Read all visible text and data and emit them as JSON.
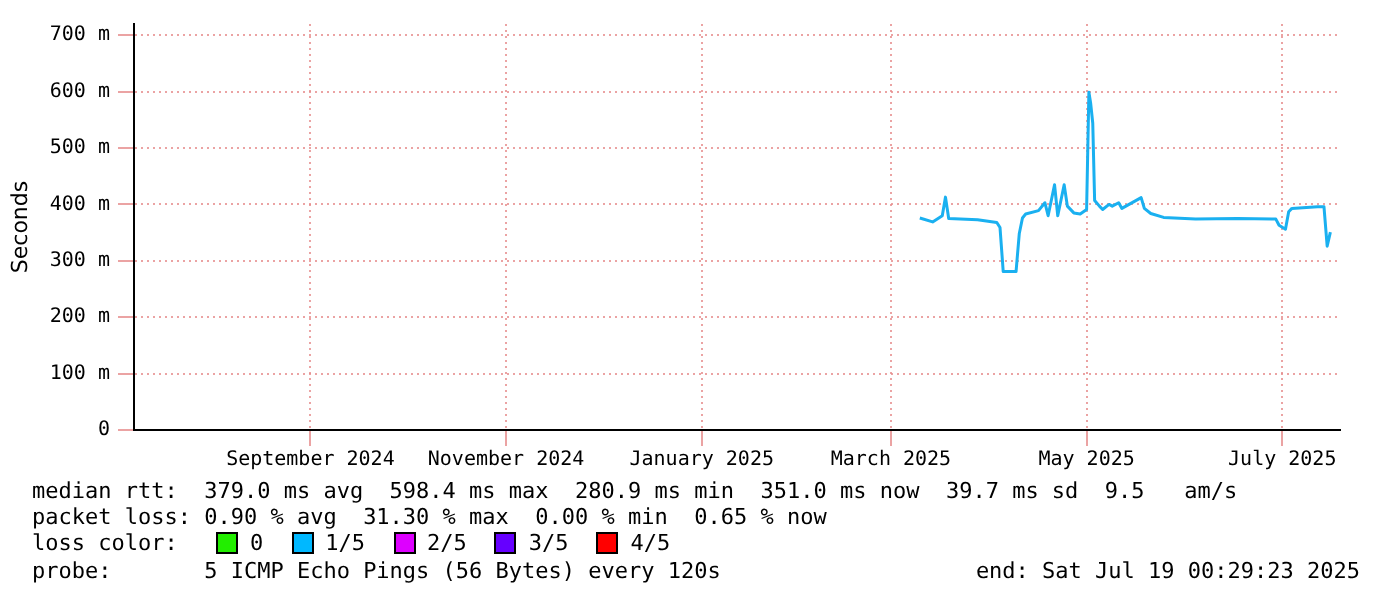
{
  "chart_data": {
    "type": "line",
    "ylabel": "Seconds",
    "x": [
      "2025-03-10",
      "2025-03-14",
      "2025-03-17",
      "2025-03-18",
      "2025-03-19",
      "2025-03-28",
      "2025-04-03",
      "2025-04-04",
      "2025-04-05",
      "2025-04-09",
      "2025-04-10",
      "2025-04-11",
      "2025-04-12",
      "2025-04-16",
      "2025-04-18",
      "2025-04-19",
      "2025-04-21",
      "2025-04-22",
      "2025-04-24",
      "2025-04-25",
      "2025-04-27",
      "2025-04-29",
      "2025-05-01",
      "2025-05-01T17:00",
      "2025-05-02T06:00",
      "2025-05-02T22:00",
      "2025-05-03T12:00",
      "2025-05-05",
      "2025-05-06",
      "2025-05-08",
      "2025-05-09",
      "2025-05-11",
      "2025-05-12",
      "2025-05-18",
      "2025-05-19",
      "2025-05-21",
      "2025-05-25",
      "2025-06-04",
      "2025-06-17",
      "2025-06-29",
      "2025-06-30",
      "2025-07-02",
      "2025-07-03",
      "2025-07-04",
      "2025-07-12",
      "2025-07-14",
      "2025-07-15",
      "2025-07-16"
    ],
    "series": [
      {
        "color": "#1ab0f0",
        "values": [
          376,
          369,
          380,
          413,
          375,
          373,
          368,
          359,
          281,
          281,
          348,
          376,
          383,
          389,
          403,
          380,
          435,
          380,
          435,
          397,
          385,
          383,
          391,
          599,
          580,
          544,
          407,
          397,
          391,
          400,
          397,
          403,
          393,
          412,
          393,
          384,
          377,
          374,
          375,
          374,
          363,
          356,
          387,
          393,
          396,
          396,
          326,
          351
        ]
      }
    ],
    "xlim": [
      "2024-07-08",
      "2025-07-19"
    ],
    "xticks": [
      {
        "value": "2024-09-01",
        "label": "September 2024"
      },
      {
        "value": "2024-11-01",
        "label": "November 2024"
      },
      {
        "value": "2025-01-01",
        "label": "January 2025"
      },
      {
        "value": "2025-03-01",
        "label": "March 2025"
      },
      {
        "value": "2025-05-01",
        "label": "May 2025"
      },
      {
        "value": "2025-07-01",
        "label": "July 2025"
      }
    ],
    "ylim": [
      0,
      720
    ],
    "yticks": [
      0,
      {
        "value": 100,
        "label": "100 m"
      },
      {
        "value": 200,
        "label": "200 m"
      },
      {
        "value": 300,
        "label": "300 m"
      },
      {
        "value": 400,
        "label": "400 m"
      },
      {
        "value": 500,
        "label": "500 m"
      },
      {
        "value": 600,
        "label": "600 m"
      },
      {
        "value": 700,
        "label": "700 m"
      }
    ],
    "grid": true,
    "legend": false,
    "marker": "none",
    "line_style": "solid",
    "annotations": [
      "median rtt:  379.0 ms avg  598.4 ms max  280.9 ms min  351.0 ms now  39.7 ms sd  9.5   am/s",
      "packet loss: 0.90 % avg  31.30 % max  0.00 % min  0.65 % now",
      "loss color:",
      "0",
      "1/5",
      "2/5",
      "3/5",
      "4/5",
      "probe:       5 ICMP Echo Pings (56 Bytes) every 120s",
      "end: Sat Jul 19 00:29:23 2025"
    ]
  }
}
